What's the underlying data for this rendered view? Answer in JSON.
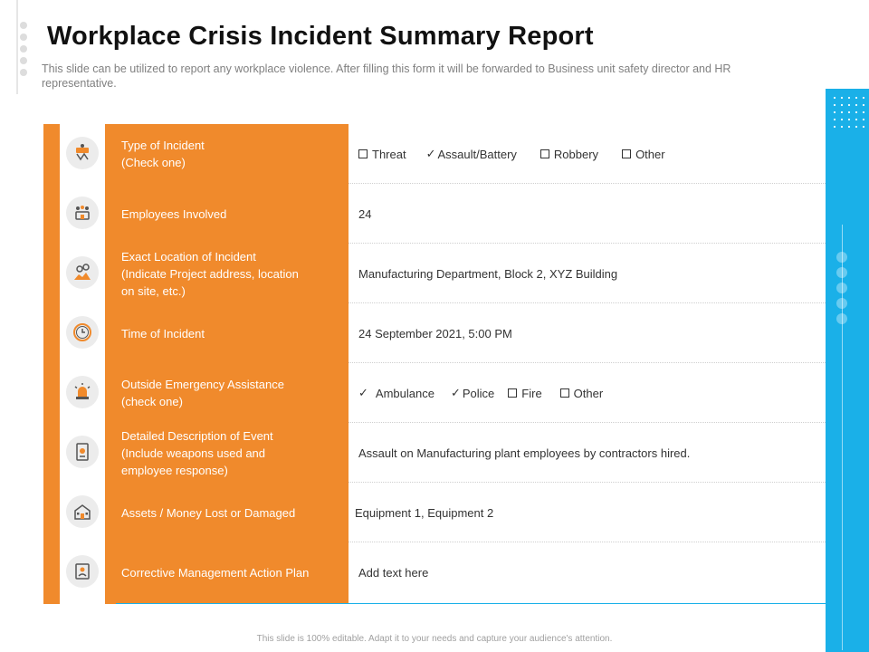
{
  "header": {
    "title": "Workplace Crisis Incident Summary Report",
    "subtitle": "This slide can be utilized to report any workplace violence. After filling this form it will be forwarded to Business unit safety director and HR representative."
  },
  "rows": [
    {
      "label": "Type of Incident\n(Check one)",
      "icon": "incident-scene-icon",
      "options": {
        "o1": "Threat",
        "o2": "Assault/Battery",
        "o3": "Robbery",
        "o4": "Other"
      }
    },
    {
      "label": "Employees Involved",
      "icon": "employees-group-icon",
      "value": "24"
    },
    {
      "label": "Exact Location of Incident\n(Indicate Project address, location\non site, etc.)",
      "icon": "location-pin-icon",
      "value": "Manufacturing Department, Block 2, XYZ Building"
    },
    {
      "label": "Time of Incident",
      "icon": "clock-icon",
      "value": "24 September 2021, 5:00 PM"
    },
    {
      "label": "Outside Emergency Assistance\n(check one)",
      "icon": "emergency-siren-icon",
      "options": {
        "o1": "Ambulance",
        "o2": "Police",
        "o3": "Fire",
        "o4": "Other"
      }
    },
    {
      "label": "Detailed Description of Event\n(Include weapons used and\nemployee response)",
      "icon": "report-document-icon",
      "value": "Assault on Manufacturing plant employees by contractors hired."
    },
    {
      "label": "Assets / Money Lost or Damaged",
      "icon": "building-icon",
      "value": "Equipment 1, Equipment 2"
    },
    {
      "label": "Corrective Management Action Plan",
      "icon": "action-plan-icon",
      "value": "Add text here"
    }
  ],
  "checked_mark": "✓",
  "footer": "This slide is 100% editable. Adapt it to your needs and capture your audience's attention.",
  "colors": {
    "accent_orange": "#f08a2c",
    "accent_blue": "#1ab0e8"
  }
}
